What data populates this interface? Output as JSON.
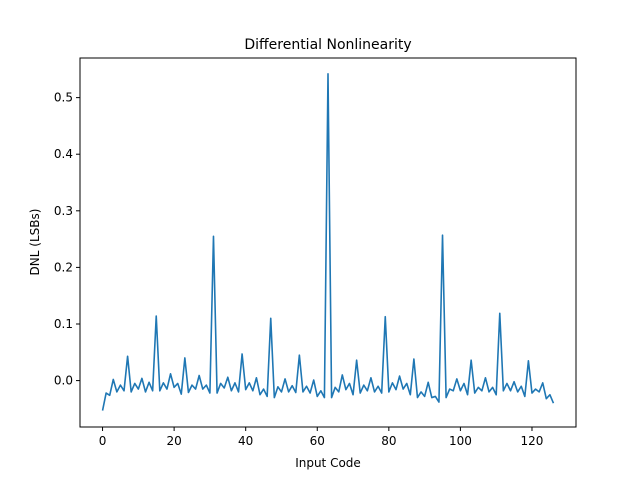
{
  "chart_data": {
    "type": "line",
    "title": "Differential Nonlinearity",
    "xlabel": "Input Code",
    "ylabel": "DNL (LSBs)",
    "xlim": [
      -6.3,
      132.3
    ],
    "ylim": [
      -0.082,
      0.57
    ],
    "xticks": [
      0,
      20,
      40,
      60,
      80,
      100,
      120
    ],
    "xtick_labels": [
      "0",
      "20",
      "40",
      "60",
      "80",
      "100",
      "120"
    ],
    "yticks": [
      0.0,
      0.1,
      0.2,
      0.3,
      0.4,
      0.5
    ],
    "ytick_labels": [
      "0.0",
      "0.1",
      "0.2",
      "0.3",
      "0.4",
      "0.5"
    ],
    "grid": false,
    "line_color": "#1f77b4",
    "series": [
      {
        "x": [
          0,
          1,
          2,
          3,
          4,
          5,
          6,
          7,
          8,
          9,
          10,
          11,
          12,
          13,
          14,
          15,
          16,
          17,
          18,
          19,
          20,
          21,
          22,
          23,
          24,
          25,
          26,
          27,
          28,
          29,
          30,
          31,
          32,
          33,
          34,
          35,
          36,
          37,
          38,
          39,
          40,
          41,
          42,
          43,
          44,
          45,
          46,
          47,
          48,
          49,
          50,
          51,
          52,
          53,
          54,
          55,
          56,
          57,
          58,
          59,
          60,
          61,
          62,
          63,
          64,
          65,
          66,
          67,
          68,
          69,
          70,
          71,
          72,
          73,
          74,
          75,
          76,
          77,
          78,
          79,
          80,
          81,
          82,
          83,
          84,
          85,
          86,
          87,
          88,
          89,
          90,
          91,
          92,
          93,
          94,
          95,
          96,
          97,
          98,
          99,
          100,
          101,
          102,
          103,
          104,
          105,
          106,
          107,
          108,
          109,
          110,
          111,
          112,
          113,
          114,
          115,
          116,
          117,
          118,
          119,
          120,
          121,
          122,
          123,
          124,
          125,
          126
        ],
        "y": [
          -0.053,
          -0.022,
          -0.026,
          0.002,
          -0.02,
          -0.008,
          -0.018,
          0.043,
          -0.02,
          -0.005,
          -0.015,
          0.004,
          -0.02,
          -0.003,
          -0.018,
          0.114,
          -0.018,
          -0.004,
          -0.015,
          0.012,
          -0.012,
          -0.005,
          -0.024,
          0.04,
          -0.021,
          -0.008,
          -0.015,
          0.009,
          -0.015,
          -0.008,
          -0.022,
          0.255,
          -0.022,
          -0.005,
          -0.013,
          0.006,
          -0.018,
          -0.004,
          -0.02,
          0.047,
          -0.016,
          -0.004,
          -0.018,
          0.005,
          -0.025,
          -0.015,
          -0.028,
          0.11,
          -0.03,
          -0.011,
          -0.02,
          0.003,
          -0.02,
          -0.009,
          -0.021,
          0.045,
          -0.02,
          -0.01,
          -0.022,
          0.001,
          -0.028,
          -0.018,
          -0.03,
          0.542,
          -0.03,
          -0.012,
          -0.02,
          0.01,
          -0.016,
          -0.005,
          -0.025,
          0.036,
          -0.022,
          -0.008,
          -0.018,
          0.005,
          -0.02,
          -0.01,
          -0.022,
          0.113,
          -0.02,
          -0.004,
          -0.016,
          0.008,
          -0.015,
          -0.005,
          -0.025,
          0.038,
          -0.03,
          -0.02,
          -0.028,
          -0.003,
          -0.03,
          -0.028,
          -0.038,
          0.257,
          -0.03,
          -0.015,
          -0.018,
          0.003,
          -0.018,
          -0.005,
          -0.025,
          0.036,
          -0.022,
          -0.012,
          -0.018,
          0.005,
          -0.02,
          -0.012,
          -0.025,
          0.119,
          -0.018,
          -0.005,
          -0.018,
          -0.002,
          -0.02,
          -0.01,
          -0.028,
          0.035,
          -0.022,
          -0.015,
          -0.02,
          -0.004,
          -0.032,
          -0.025,
          -0.04
        ]
      }
    ]
  }
}
